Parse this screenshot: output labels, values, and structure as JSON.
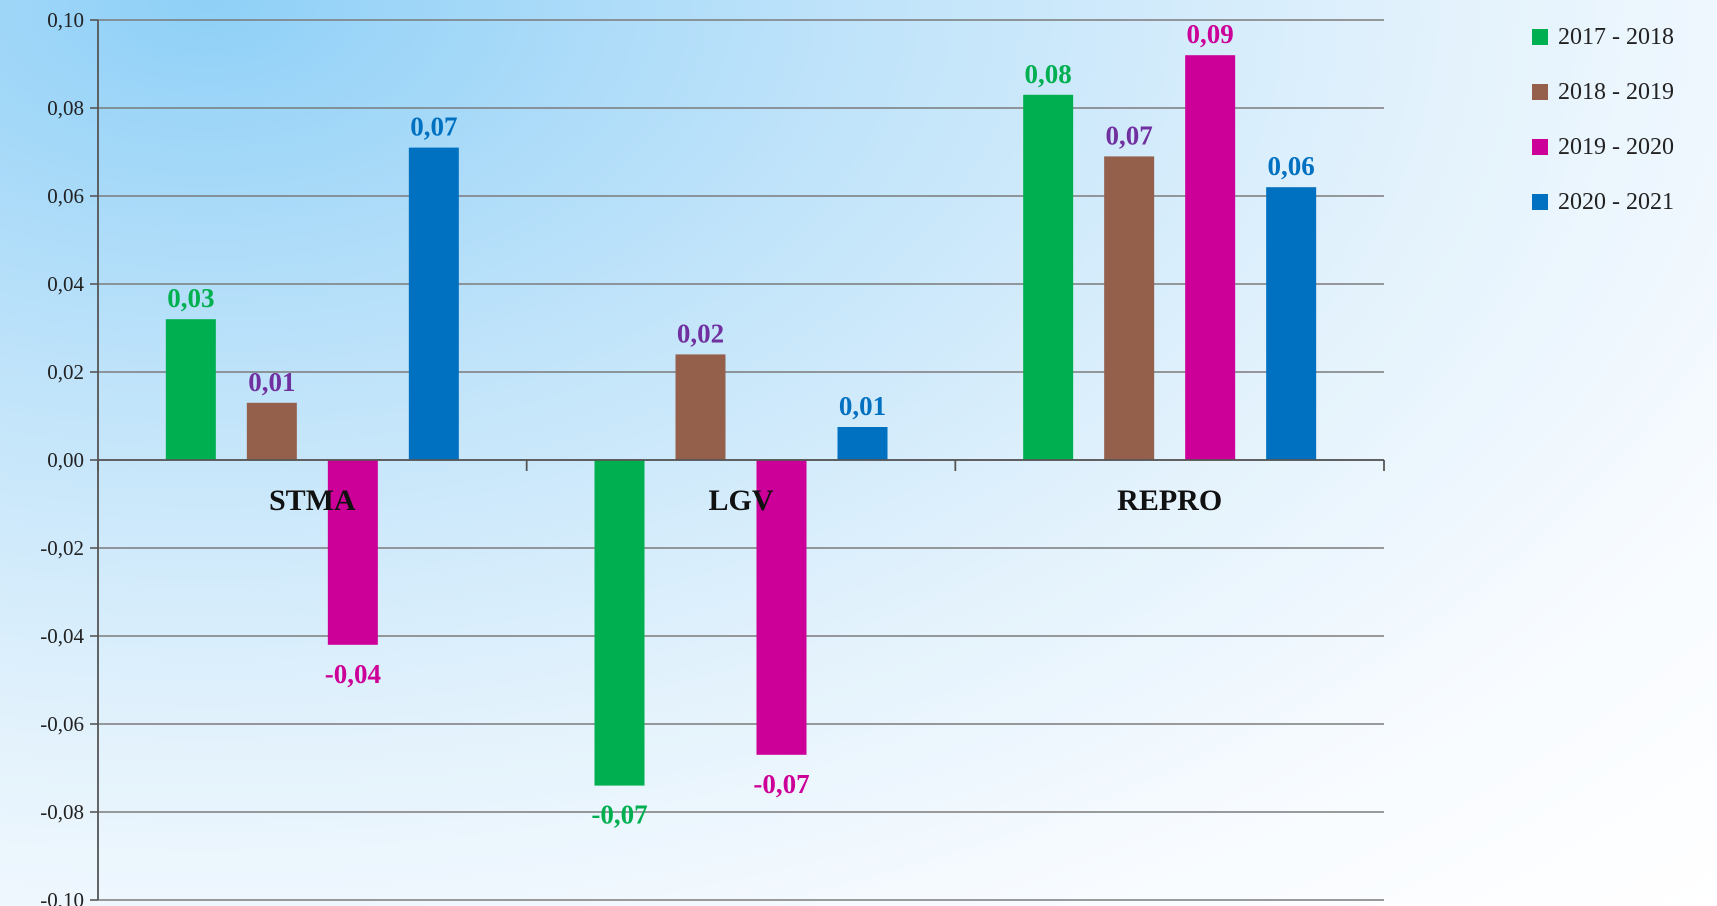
{
  "chart_data": {
    "type": "bar",
    "categories": [
      "STMA",
      "LGV",
      "REPRO"
    ],
    "y_ticks": [
      "0,10",
      "0,08",
      "0,06",
      "0,04",
      "0,02",
      "0,00",
      "-0,02",
      "-0,04",
      "-0,06",
      "-0,08",
      "-0,10"
    ],
    "ylim": [
      -0.1,
      0.1
    ],
    "grid": true,
    "legend_position": "top-right",
    "series": [
      {
        "name": "2017 - 2018",
        "color": "#00b050",
        "label_color": "#00b050",
        "values": [
          0.032,
          -0.074,
          0.083
        ],
        "labels": [
          "0,03",
          "-0,07",
          "0,08"
        ]
      },
      {
        "name": "2018 - 2019",
        "color": "#94604c",
        "label_color": "#7030a0",
        "values": [
          0.013,
          0.024,
          0.069
        ],
        "labels": [
          "0,01",
          "0,02",
          "0,07"
        ]
      },
      {
        "name": "2019 - 2020",
        "color": "#cc0099",
        "label_color": "#cc0099",
        "values": [
          -0.042,
          -0.067,
          0.092
        ],
        "labels": [
          "-0,04",
          "-0,07",
          "0,09"
        ]
      },
      {
        "name": "2020 - 2021",
        "color": "#0070c0",
        "label_color": "#0070c0",
        "values": [
          0.071,
          0.0075,
          0.062
        ],
        "labels": [
          "0,07",
          "0,01",
          "0,06"
        ]
      }
    ]
  }
}
